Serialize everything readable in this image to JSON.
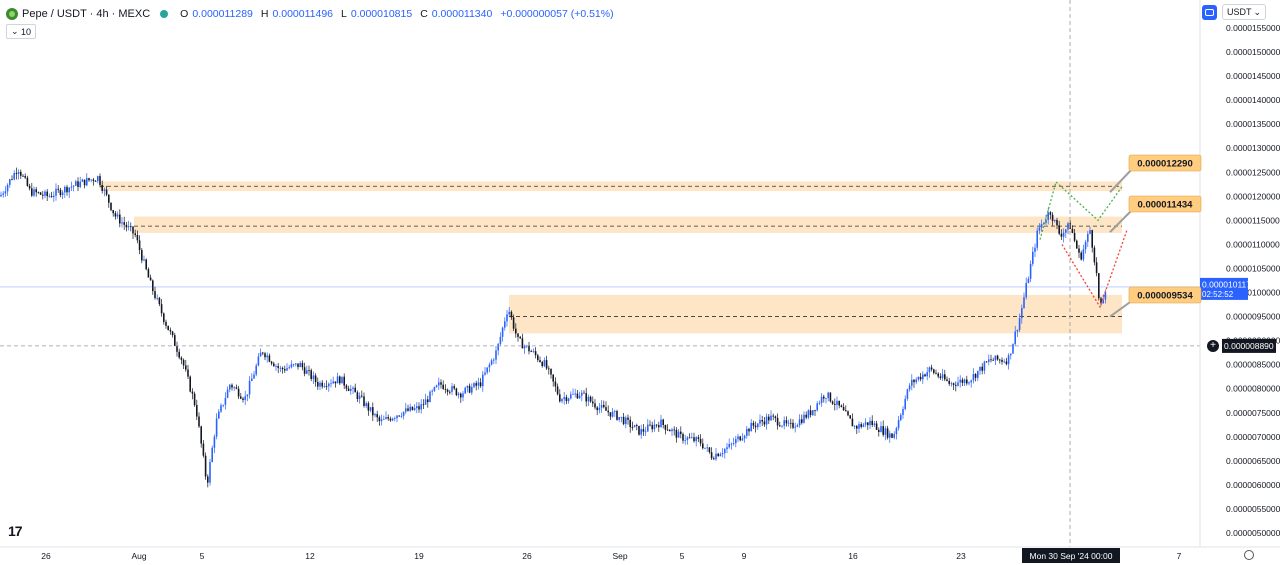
{
  "header": {
    "symbol": "Pepe / USDT · 4h · MEXC",
    "open_label": "O",
    "open": "0.000011289",
    "high_label": "H",
    "high": "0.000011496",
    "low_label": "L",
    "low": "0.000010815",
    "close_label": "C",
    "close": "0.000011340",
    "change": "+0.000000057 (+0.51%)",
    "volume_badge": "10"
  },
  "toolbar": {
    "currency": "USDT"
  },
  "branding": {
    "logo_text": "17"
  },
  "chart_data": {
    "type": "candlestick",
    "ylim": [
      4.9e-06,
      1.59e-05
    ],
    "yticks": [
      "0.0000155000",
      "0.0000150000",
      "0.0000145000",
      "0.0000140000",
      "0.0000135000",
      "0.0000130000",
      "0.0000125000",
      "0.0000120000",
      "0.0000115000",
      "0.0000110000",
      "0.0000105000",
      "0.0000100000",
      "0.0000095000",
      "0.0000090000",
      "0.0000085000",
      "0.0000080000",
      "0.0000075000",
      "0.0000070000",
      "0.0000065000",
      "0.0000060000",
      "0.0000055000",
      "0.0000050000"
    ],
    "xticks": [
      "26",
      "Aug",
      "5",
      "12",
      "19",
      "26",
      "Sep",
      "5",
      "9",
      "16",
      "23",
      "7"
    ],
    "crosshair_x_label": "Mon 30 Sep '24   00:00",
    "last_price_label": "0.000010117",
    "countdown_label": "02:52:52",
    "crosshair_y_label": "0.000008890",
    "price_path": [
      [
        0,
        12.0
      ],
      [
        18,
        12.6
      ],
      [
        30,
        12.1
      ],
      [
        48,
        12.0
      ],
      [
        70,
        12.2
      ],
      [
        98,
        12.4
      ],
      [
        115,
        11.6
      ],
      [
        135,
        11.2
      ],
      [
        150,
        10.2
      ],
      [
        165,
        9.4
      ],
      [
        182,
        8.6
      ],
      [
        196,
        7.6
      ],
      [
        207,
        6.0
      ],
      [
        216,
        7.3
      ],
      [
        230,
        8.1
      ],
      [
        245,
        7.8
      ],
      [
        262,
        8.8
      ],
      [
        280,
        8.4
      ],
      [
        300,
        8.5
      ],
      [
        318,
        8.1
      ],
      [
        340,
        8.2
      ],
      [
        360,
        7.8
      ],
      [
        380,
        7.3
      ],
      [
        400,
        7.5
      ],
      [
        420,
        7.6
      ],
      [
        440,
        8.1
      ],
      [
        460,
        7.9
      ],
      [
        480,
        8.1
      ],
      [
        497,
        8.8
      ],
      [
        508,
        9.7
      ],
      [
        518,
        9.0
      ],
      [
        530,
        8.8
      ],
      [
        545,
        8.5
      ],
      [
        560,
        7.8
      ],
      [
        580,
        7.9
      ],
      [
        600,
        7.6
      ],
      [
        620,
        7.4
      ],
      [
        640,
        7.1
      ],
      [
        660,
        7.3
      ],
      [
        680,
        7.0
      ],
      [
        700,
        6.9
      ],
      [
        712,
        6.6
      ],
      [
        730,
        6.8
      ],
      [
        750,
        7.2
      ],
      [
        770,
        7.4
      ],
      [
        790,
        7.2
      ],
      [
        810,
        7.5
      ],
      [
        825,
        7.9
      ],
      [
        840,
        7.6
      ],
      [
        855,
        7.2
      ],
      [
        870,
        7.3
      ],
      [
        893,
        7.0
      ],
      [
        910,
        8.1
      ],
      [
        930,
        8.4
      ],
      [
        950,
        8.1
      ],
      [
        970,
        8.2
      ],
      [
        990,
        8.6
      ],
      [
        1008,
        8.6
      ],
      [
        1020,
        9.5
      ],
      [
        1028,
        10.3
      ],
      [
        1038,
        11.3
      ],
      [
        1050,
        11.7
      ],
      [
        1060,
        11.2
      ],
      [
        1070,
        11.4
      ],
      [
        1080,
        10.7
      ],
      [
        1090,
        11.3
      ],
      [
        1096,
        10.5
      ],
      [
        1100,
        9.6
      ],
      [
        1106,
        10.1
      ]
    ],
    "levels": [
      {
        "label": "0.000012290",
        "y": 1.221e-05,
        "band": [
          1.211e-05,
          1.231e-05
        ]
      },
      {
        "label": "0.000011434",
        "y": 1.138e-05,
        "band": [
          1.124e-05,
          1.158e-05
        ]
      },
      {
        "label": "0.000009534",
        "y": 9.5e-06,
        "band": [
          9.15e-06,
          9.95e-06
        ]
      }
    ],
    "colors": {
      "up": "#2962ff",
      "down": "#131722",
      "band": "#fde0bc",
      "label": "#ffcc80",
      "green_path": "#4caf50",
      "red_path": "#f44336",
      "last_price": "#2962ff"
    }
  }
}
